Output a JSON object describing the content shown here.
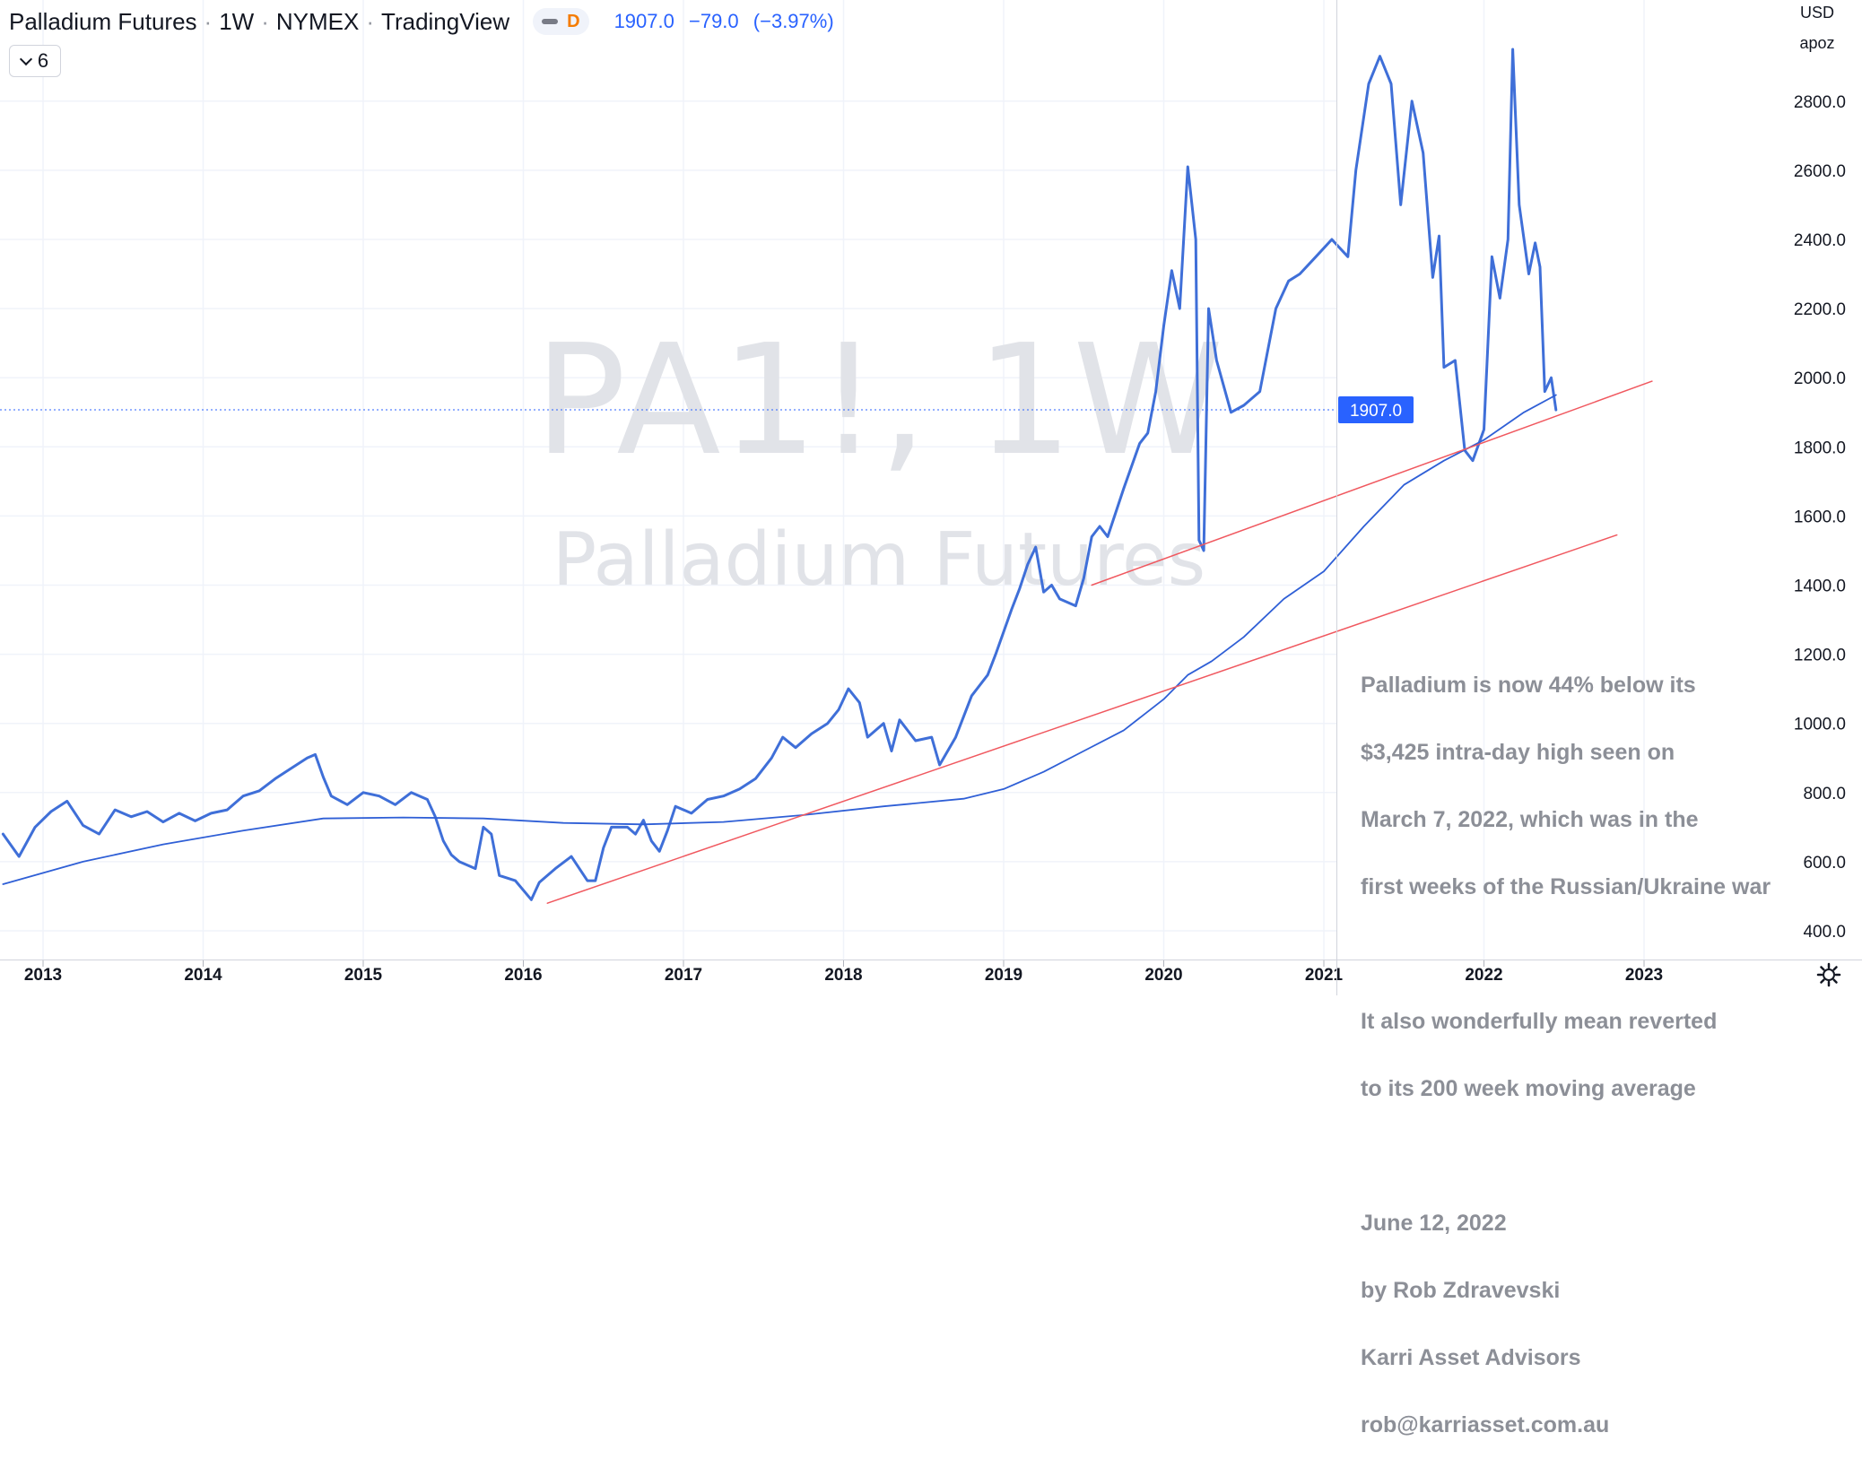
{
  "header": {
    "symbol_name": "Palladium Futures",
    "interval": "1W",
    "exchange": "NYMEX",
    "provider": "TradingView",
    "mode_badge": "D",
    "last_price": "1907.0",
    "change": "−79.0",
    "change_pct": "(−3.97%)"
  },
  "legend_toggle": {
    "count": "6"
  },
  "price_axis": {
    "currency": "USD",
    "scale_mode": "apoz",
    "current_label": "1907.0"
  },
  "watermark": {
    "line1": "PA1!, 1W",
    "line2": "Palladium Futures"
  },
  "annotation": {
    "para1": [
      "Palladium is now 44% below its",
      "$3,425 intra-day high seen on",
      "March 7, 2022, which was in the",
      "first weeks of the Russian/Ukraine war"
    ],
    "para2": [
      "It also wonderfully mean reverted",
      "to its 200 week moving average"
    ],
    "para3": [
      "June 12, 2022",
      "by Rob Zdravevski",
      "Karri Asset Advisors",
      "rob@karriasset.com.au"
    ]
  },
  "colors": {
    "price_line": "#3f6fd8",
    "ma_line": "#2f5fd6",
    "trendline": "#f0585f",
    "grid": "#f0f3fa",
    "axis_text": "#131722",
    "price_tag": "#2962ff"
  },
  "chart_data": {
    "type": "line",
    "title": "Palladium Futures",
    "ylim": [
      380,
      3000
    ],
    "xlim": [
      2012.75,
      2023.85
    ],
    "y_ticks": [
      400,
      600,
      800,
      1000,
      1200,
      1400,
      1600,
      1800,
      2000,
      2200,
      2400,
      2600,
      2800
    ],
    "x_ticks": [
      "2013",
      "2014",
      "2015",
      "2016",
      "2017",
      "2018",
      "2019",
      "2020",
      "2021",
      "2022",
      "2023"
    ],
    "grid": true,
    "series": [
      {
        "name": "Palladium Futures",
        "values": [
          [
            2012.75,
            680
          ],
          [
            2012.85,
            615
          ],
          [
            2012.95,
            700
          ],
          [
            2013.05,
            745
          ],
          [
            2013.15,
            775
          ],
          [
            2013.25,
            705
          ],
          [
            2013.35,
            680
          ],
          [
            2013.45,
            750
          ],
          [
            2013.55,
            730
          ],
          [
            2013.65,
            745
          ],
          [
            2013.75,
            715
          ],
          [
            2013.85,
            740
          ],
          [
            2013.95,
            718
          ],
          [
            2014.05,
            740
          ],
          [
            2014.15,
            750
          ],
          [
            2014.25,
            790
          ],
          [
            2014.35,
            805
          ],
          [
            2014.45,
            840
          ],
          [
            2014.55,
            870
          ],
          [
            2014.65,
            900
          ],
          [
            2014.7,
            910
          ],
          [
            2014.75,
            845
          ],
          [
            2014.8,
            790
          ],
          [
            2014.9,
            765
          ],
          [
            2015.0,
            800
          ],
          [
            2015.1,
            790
          ],
          [
            2015.2,
            765
          ],
          [
            2015.3,
            800
          ],
          [
            2015.4,
            780
          ],
          [
            2015.45,
            730
          ],
          [
            2015.5,
            660
          ],
          [
            2015.55,
            620
          ],
          [
            2015.6,
            600
          ],
          [
            2015.7,
            580
          ],
          [
            2015.75,
            700
          ],
          [
            2015.8,
            680
          ],
          [
            2015.85,
            560
          ],
          [
            2015.95,
            545
          ],
          [
            2016.05,
            490
          ],
          [
            2016.1,
            540
          ],
          [
            2016.2,
            580
          ],
          [
            2016.3,
            615
          ],
          [
            2016.4,
            545
          ],
          [
            2016.45,
            545
          ],
          [
            2016.5,
            640
          ],
          [
            2016.55,
            700
          ],
          [
            2016.65,
            700
          ],
          [
            2016.7,
            680
          ],
          [
            2016.75,
            720
          ],
          [
            2016.8,
            660
          ],
          [
            2016.85,
            630
          ],
          [
            2016.9,
            690
          ],
          [
            2016.95,
            760
          ],
          [
            2017.05,
            740
          ],
          [
            2017.15,
            780
          ],
          [
            2017.25,
            790
          ],
          [
            2017.35,
            810
          ],
          [
            2017.45,
            840
          ],
          [
            2017.55,
            900
          ],
          [
            2017.62,
            960
          ],
          [
            2017.7,
            930
          ],
          [
            2017.8,
            970
          ],
          [
            2017.9,
            1000
          ],
          [
            2017.97,
            1040
          ],
          [
            2018.03,
            1100
          ],
          [
            2018.1,
            1060
          ],
          [
            2018.15,
            960
          ],
          [
            2018.25,
            1000
          ],
          [
            2018.3,
            920
          ],
          [
            2018.35,
            1010
          ],
          [
            2018.45,
            950
          ],
          [
            2018.55,
            960
          ],
          [
            2018.6,
            880
          ],
          [
            2018.7,
            960
          ],
          [
            2018.8,
            1080
          ],
          [
            2018.9,
            1140
          ],
          [
            2018.95,
            1200
          ],
          [
            2019.05,
            1330
          ],
          [
            2019.1,
            1390
          ],
          [
            2019.15,
            1460
          ],
          [
            2019.2,
            1510
          ],
          [
            2019.25,
            1380
          ],
          [
            2019.3,
            1400
          ],
          [
            2019.35,
            1360
          ],
          [
            2019.45,
            1340
          ],
          [
            2019.5,
            1420
          ],
          [
            2019.55,
            1540
          ],
          [
            2019.6,
            1570
          ],
          [
            2019.65,
            1540
          ],
          [
            2019.75,
            1680
          ],
          [
            2019.85,
            1810
          ],
          [
            2019.9,
            1840
          ],
          [
            2019.95,
            1960
          ],
          [
            2020.0,
            2150
          ],
          [
            2020.05,
            2310
          ],
          [
            2020.1,
            2200
          ],
          [
            2020.15,
            2610
          ],
          [
            2020.2,
            2400
          ],
          [
            2020.22,
            1530
          ],
          [
            2020.25,
            1500
          ],
          [
            2020.28,
            2200
          ],
          [
            2020.33,
            2050
          ],
          [
            2020.42,
            1900
          ],
          [
            2020.5,
            1920
          ],
          [
            2020.6,
            1960
          ],
          [
            2020.7,
            2200
          ],
          [
            2020.78,
            2280
          ],
          [
            2020.85,
            2300
          ],
          [
            2020.95,
            2350
          ],
          [
            2021.05,
            2400
          ],
          [
            2021.15,
            2350
          ],
          [
            2021.2,
            2600
          ],
          [
            2021.28,
            2850
          ],
          [
            2021.35,
            2930
          ],
          [
            2021.42,
            2850
          ],
          [
            2021.48,
            2500
          ],
          [
            2021.55,
            2800
          ],
          [
            2021.62,
            2650
          ],
          [
            2021.68,
            2290
          ],
          [
            2021.72,
            2410
          ],
          [
            2021.75,
            2030
          ],
          [
            2021.82,
            2050
          ],
          [
            2021.88,
            1790
          ],
          [
            2021.93,
            1760
          ],
          [
            2022.0,
            1850
          ],
          [
            2022.05,
            2350
          ],
          [
            2022.1,
            2230
          ],
          [
            2022.15,
            2400
          ],
          [
            2022.18,
            2950
          ],
          [
            2022.22,
            2500
          ],
          [
            2022.28,
            2300
          ],
          [
            2022.32,
            2390
          ],
          [
            2022.35,
            2320
          ],
          [
            2022.38,
            1960
          ],
          [
            2022.42,
            2000
          ],
          [
            2022.45,
            1907
          ]
        ]
      },
      {
        "name": "200 week moving average",
        "values": [
          [
            2012.75,
            535
          ],
          [
            2013.25,
            600
          ],
          [
            2013.75,
            650
          ],
          [
            2014.25,
            690
          ],
          [
            2014.75,
            725
          ],
          [
            2015.25,
            728
          ],
          [
            2015.75,
            725
          ],
          [
            2016.25,
            712
          ],
          [
            2016.75,
            708
          ],
          [
            2017.25,
            715
          ],
          [
            2017.75,
            735
          ],
          [
            2018.25,
            760
          ],
          [
            2018.75,
            782
          ],
          [
            2019.0,
            810
          ],
          [
            2019.25,
            860
          ],
          [
            2019.5,
            920
          ],
          [
            2019.75,
            980
          ],
          [
            2020.0,
            1070
          ],
          [
            2020.15,
            1140
          ],
          [
            2020.3,
            1180
          ],
          [
            2020.5,
            1250
          ],
          [
            2020.75,
            1360
          ],
          [
            2021.0,
            1440
          ],
          [
            2021.25,
            1570
          ],
          [
            2021.5,
            1690
          ],
          [
            2021.75,
            1760
          ],
          [
            2022.0,
            1820
          ],
          [
            2022.25,
            1900
          ],
          [
            2022.45,
            1950
          ]
        ]
      },
      {
        "name": "trendline-upper",
        "values": [
          [
            2019.55,
            1400
          ],
          [
            2023.05,
            1990
          ]
        ]
      },
      {
        "name": "trendline-lower",
        "values": [
          [
            2016.15,
            480
          ],
          [
            2022.83,
            1545
          ]
        ]
      }
    ]
  }
}
